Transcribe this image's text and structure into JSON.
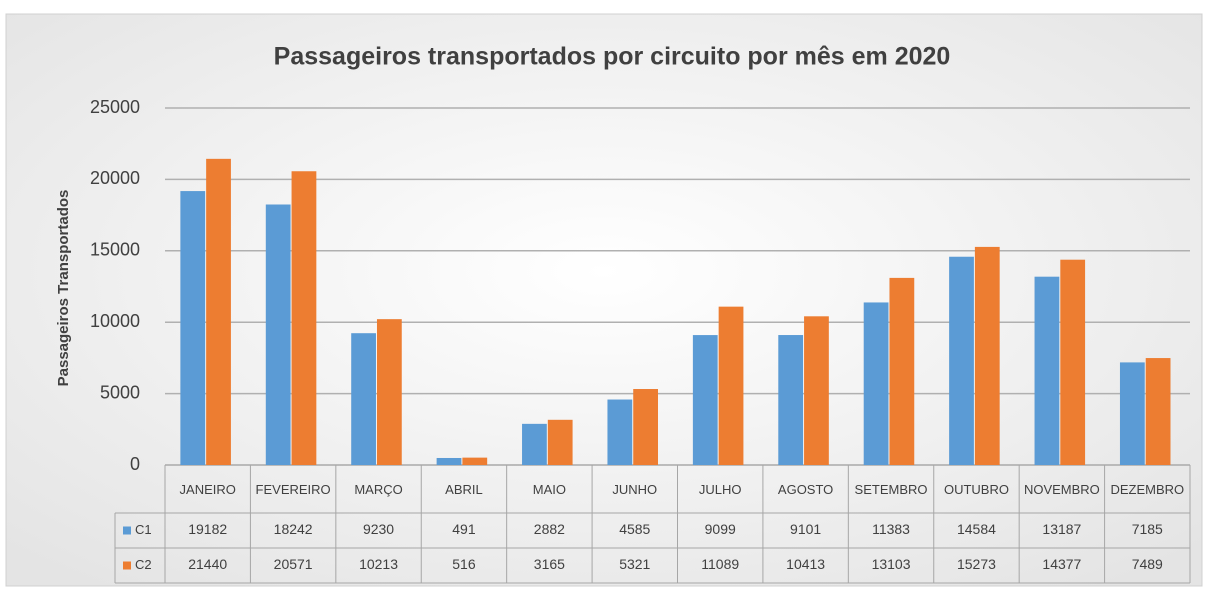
{
  "chart_data": {
    "type": "bar",
    "title": "Passageiros transportados por circuito por mês em 2020",
    "y_label": "Passageiros Transportados",
    "categories": [
      "JANEIRO",
      "FEVEREIRO",
      "MARÇO",
      "ABRIL",
      "MAIO",
      "JUNHO",
      "JULHO",
      "AGOSTO",
      "SETEMBRO",
      "OUTUBRO",
      "NOVEMBRO",
      "DEZEMBRO"
    ],
    "series": [
      {
        "name": "C1",
        "color": "#5b9bd5",
        "values": [
          19182,
          18242,
          9230,
          491,
          2882,
          4585,
          9099,
          9101,
          11383,
          14584,
          13187,
          7185
        ]
      },
      {
        "name": "C2",
        "color": "#ed7d31",
        "values": [
          21440,
          20571,
          10213,
          516,
          3165,
          5321,
          11089,
          10413,
          13103,
          15273,
          14377,
          7489
        ]
      }
    ],
    "ylim": [
      0,
      25000
    ],
    "yticks": [
      0,
      5000,
      10000,
      15000,
      20000,
      25000
    ],
    "grid": true
  }
}
